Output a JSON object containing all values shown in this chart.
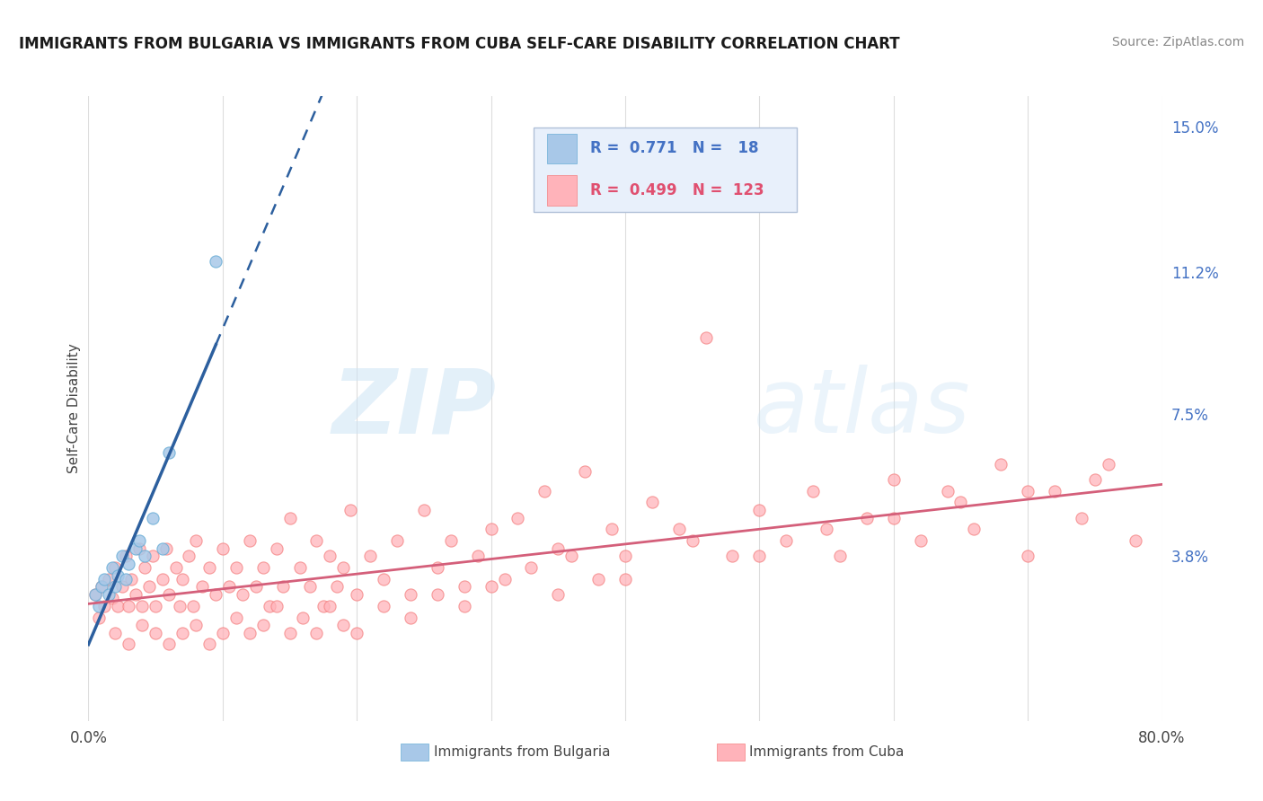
{
  "title": "IMMIGRANTS FROM BULGARIA VS IMMIGRANTS FROM CUBA SELF-CARE DISABILITY CORRELATION CHART",
  "source": "Source: ZipAtlas.com",
  "ylabel": "Self-Care Disability",
  "xlim": [
    0.0,
    0.8
  ],
  "ylim": [
    -0.005,
    0.158
  ],
  "yticks_right": [
    0.038,
    0.075,
    0.112,
    0.15
  ],
  "yticks_right_labels": [
    "3.8%",
    "7.5%",
    "11.2%",
    "15.0%"
  ],
  "legend_bulgaria_R": "0.771",
  "legend_bulgaria_N": "18",
  "legend_cuba_R": "0.499",
  "legend_cuba_N": "123",
  "bulgaria_color": "#a8c8e8",
  "bulgaria_edge_color": "#6baed6",
  "cuba_color": "#ffb3ba",
  "cuba_edge_color": "#f48080",
  "trendline_bulgaria_color": "#2c5f9e",
  "trendline_cuba_color": "#d45f7a",
  "watermark_zip": "ZIP",
  "watermark_atlas": "atlas",
  "background_color": "#ffffff",
  "grid_color": "#dddddd",
  "legend_box_color": "#e8f0fb",
  "legend_border_color": "#b0c0d8",
  "legend_bulgaria_text_color": "#4472c4",
  "legend_cuba_text_color": "#e05070",
  "right_axis_color": "#4472c4",
  "title_color": "#1a1a1a",
  "source_color": "#888888",
  "bottom_label_color": "#444444",
  "ylabel_color": "#444444",
  "xtick_color": "#444444",
  "bulgaria_x": [
    0.005,
    0.008,
    0.01,
    0.012,
    0.015,
    0.018,
    0.02,
    0.022,
    0.025,
    0.028,
    0.03,
    0.035,
    0.038,
    0.042,
    0.048,
    0.055,
    0.06,
    0.095
  ],
  "bulgaria_y": [
    0.028,
    0.025,
    0.03,
    0.032,
    0.028,
    0.035,
    0.03,
    0.033,
    0.038,
    0.032,
    0.036,
    0.04,
    0.042,
    0.038,
    0.048,
    0.04,
    0.065,
    0.115
  ],
  "cuba_x": [
    0.005,
    0.008,
    0.01,
    0.012,
    0.015,
    0.018,
    0.02,
    0.022,
    0.025,
    0.028,
    0.03,
    0.032,
    0.035,
    0.038,
    0.04,
    0.042,
    0.045,
    0.048,
    0.05,
    0.055,
    0.058,
    0.06,
    0.065,
    0.068,
    0.07,
    0.075,
    0.078,
    0.08,
    0.085,
    0.09,
    0.095,
    0.1,
    0.105,
    0.11,
    0.115,
    0.12,
    0.125,
    0.13,
    0.135,
    0.14,
    0.145,
    0.15,
    0.158,
    0.165,
    0.17,
    0.175,
    0.18,
    0.185,
    0.19,
    0.195,
    0.2,
    0.21,
    0.22,
    0.23,
    0.24,
    0.25,
    0.26,
    0.27,
    0.28,
    0.29,
    0.3,
    0.31,
    0.32,
    0.33,
    0.34,
    0.35,
    0.36,
    0.37,
    0.38,
    0.39,
    0.4,
    0.42,
    0.44,
    0.46,
    0.48,
    0.5,
    0.52,
    0.54,
    0.56,
    0.58,
    0.6,
    0.62,
    0.64,
    0.66,
    0.68,
    0.7,
    0.72,
    0.74,
    0.76,
    0.78,
    0.02,
    0.03,
    0.04,
    0.05,
    0.06,
    0.07,
    0.08,
    0.09,
    0.1,
    0.11,
    0.12,
    0.13,
    0.14,
    0.15,
    0.16,
    0.17,
    0.18,
    0.19,
    0.2,
    0.22,
    0.24,
    0.26,
    0.28,
    0.3,
    0.35,
    0.4,
    0.45,
    0.5,
    0.55,
    0.6,
    0.65,
    0.7,
    0.75
  ],
  "cuba_y": [
    0.028,
    0.022,
    0.03,
    0.025,
    0.032,
    0.027,
    0.035,
    0.025,
    0.03,
    0.038,
    0.025,
    0.032,
    0.028,
    0.04,
    0.025,
    0.035,
    0.03,
    0.038,
    0.025,
    0.032,
    0.04,
    0.028,
    0.035,
    0.025,
    0.032,
    0.038,
    0.025,
    0.042,
    0.03,
    0.035,
    0.028,
    0.04,
    0.03,
    0.035,
    0.028,
    0.042,
    0.03,
    0.035,
    0.025,
    0.04,
    0.03,
    0.048,
    0.035,
    0.03,
    0.042,
    0.025,
    0.038,
    0.03,
    0.035,
    0.05,
    0.028,
    0.038,
    0.032,
    0.042,
    0.028,
    0.05,
    0.035,
    0.042,
    0.03,
    0.038,
    0.045,
    0.032,
    0.048,
    0.035,
    0.055,
    0.04,
    0.038,
    0.06,
    0.032,
    0.045,
    0.038,
    0.052,
    0.045,
    0.095,
    0.038,
    0.05,
    0.042,
    0.055,
    0.038,
    0.048,
    0.058,
    0.042,
    0.055,
    0.045,
    0.062,
    0.038,
    0.055,
    0.048,
    0.062,
    0.042,
    0.018,
    0.015,
    0.02,
    0.018,
    0.015,
    0.018,
    0.02,
    0.015,
    0.018,
    0.022,
    0.018,
    0.02,
    0.025,
    0.018,
    0.022,
    0.018,
    0.025,
    0.02,
    0.018,
    0.025,
    0.022,
    0.028,
    0.025,
    0.03,
    0.028,
    0.032,
    0.042,
    0.038,
    0.045,
    0.048,
    0.052,
    0.055,
    0.058
  ]
}
